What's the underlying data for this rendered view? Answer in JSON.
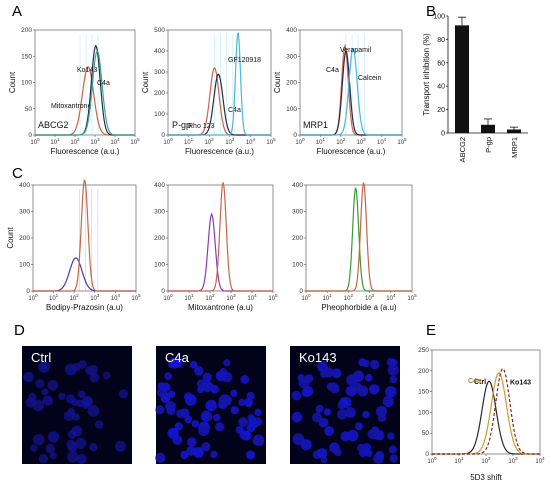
{
  "panels": {
    "A": "A",
    "B": "B",
    "C": "C",
    "D": "D",
    "E": "E"
  },
  "chart_data": [
    {
      "panel": "A",
      "type": "line",
      "inset_label": "ABCG2",
      "xlabel": "Fluorescence (a.u.)",
      "ylabel": "Count",
      "xscale": "log",
      "xlim": [
        1,
        100000
      ],
      "ylim": [
        0,
        200
      ],
      "yticks": [
        0,
        50,
        100,
        150,
        200
      ],
      "xtick_labels": [
        "10^0",
        "10^1",
        "10^2",
        "10^3",
        "10^4",
        "10^5"
      ],
      "series": [
        {
          "name": "Mitoxantrone",
          "color": "#c8644a",
          "peak_x": 450,
          "peak_y": 130,
          "width": 0.28
        },
        {
          "name": "Ko143",
          "color": "#2a2a4a",
          "peak_x": 1100,
          "peak_y": 170,
          "width": 0.22
        },
        {
          "name": "C4a",
          "color": "#3aa8a0",
          "peak_x": 1300,
          "peak_y": 160,
          "width": 0.24
        }
      ],
      "background_color": "#7fd4e8"
    },
    {
      "panel": "A",
      "type": "line",
      "inset_label": "P-gp",
      "xlabel": "Fluorescence (a.u.)",
      "ylabel": "Count",
      "xscale": "log",
      "xlim": [
        1,
        100000
      ],
      "ylim": [
        0,
        500
      ],
      "yticks": [
        0,
        100,
        200,
        300,
        400,
        500
      ],
      "xtick_labels": [
        "10^0",
        "10^1",
        "10^2",
        "10^3",
        "10^4",
        "10^5"
      ],
      "series": [
        {
          "name": "Rho 123",
          "color": "#c8644a",
          "peak_x": 180,
          "peak_y": 320,
          "width": 0.22
        },
        {
          "name": "C4a",
          "color": "#2a2a4a",
          "peak_x": 280,
          "peak_y": 290,
          "width": 0.22
        },
        {
          "name": "GF120918",
          "color": "#4ab8d8",
          "peak_x": 2500,
          "peak_y": 490,
          "width": 0.12
        }
      ],
      "background_color": "#7fd4e8"
    },
    {
      "panel": "A",
      "type": "line",
      "inset_label": "MRP1",
      "xlabel": "Fluorescence (a.u.)",
      "ylabel": "Count",
      "xscale": "log",
      "xlim": [
        1,
        100000
      ],
      "ylim": [
        0,
        400
      ],
      "yticks": [
        0,
        100,
        200,
        300,
        400
      ],
      "xtick_labels": [
        "10^0",
        "10^1",
        "10^2",
        "10^3",
        "10^4",
        "10^5"
      ],
      "series": [
        {
          "name": "C4a",
          "color": "#c8644a",
          "peak_x": 160,
          "peak_y": 340,
          "width": 0.16
        },
        {
          "name": "Calcein",
          "color": "#2a2a4a",
          "peak_x": 180,
          "peak_y": 320,
          "width": 0.18
        },
        {
          "name": "Verapamil",
          "color": "#4ab8d8",
          "peak_x": 400,
          "peak_y": 330,
          "width": 0.2
        }
      ],
      "background_color": "#7fd4e8"
    },
    {
      "panel": "B",
      "type": "bar",
      "ylabel": "Transport inhibition (%)",
      "categories": [
        "ABCG2",
        "P-gp",
        "MRP1"
      ],
      "values": [
        92,
        7,
        3
      ],
      "errors": [
        7,
        5,
        2
      ],
      "ylim": [
        0,
        100
      ],
      "yticks": [
        0,
        20,
        40,
        60,
        80,
        100
      ]
    },
    {
      "panel": "C",
      "type": "line",
      "xlabel": "Bodipy-Prazosin (a.u)",
      "ylabel": "Count",
      "xscale": "log",
      "xlim": [
        1,
        100000
      ],
      "ylim": [
        0,
        400
      ],
      "yticks": [
        0,
        100,
        200,
        300,
        400
      ],
      "xtick_labels": [
        "10^0",
        "10^1",
        "10^2",
        "10^3",
        "10^4",
        "10^5"
      ],
      "series": [
        {
          "color": "#4a3ab8",
          "peak_x": 120,
          "peak_y": 125,
          "width": 0.3
        },
        {
          "color": "#c8644a",
          "peak_x": 320,
          "peak_y": 420,
          "width": 0.16
        }
      ],
      "background_color": "#9090e8"
    },
    {
      "panel": "C",
      "type": "line",
      "xlabel": "Mitoxantrone (a.u)",
      "ylabel": "",
      "xscale": "log",
      "xlim": [
        1,
        100000
      ],
      "ylim": [
        0,
        400
      ],
      "yticks": [
        0,
        100,
        200,
        300,
        400
      ],
      "xtick_labels": [
        "10^0",
        "10^1",
        "10^2",
        "10^3",
        "10^4",
        "10^5"
      ],
      "series": [
        {
          "color": "#8a3ab8",
          "peak_x": 120,
          "peak_y": 290,
          "width": 0.17
        },
        {
          "color": "#c8644a",
          "peak_x": 420,
          "peak_y": 410,
          "width": 0.15
        }
      ]
    },
    {
      "panel": "C",
      "type": "line",
      "xlabel": "Pheophorbide a (a.u)",
      "ylabel": "",
      "xscale": "log",
      "xlim": [
        1,
        100000
      ],
      "ylim": [
        0,
        400
      ],
      "yticks": [
        0,
        100,
        200,
        300,
        400
      ],
      "xtick_labels": [
        "10^0",
        "10^1",
        "10^2",
        "10^3",
        "10^4",
        "10^5"
      ],
      "series": [
        {
          "color": "#3a9a3a",
          "peak_x": 220,
          "peak_y": 390,
          "width": 0.14
        },
        {
          "color": "#c8644a",
          "peak_x": 520,
          "peak_y": 410,
          "width": 0.14
        }
      ]
    },
    {
      "panel": "E",
      "type": "line",
      "xlabel": "5D3 shift",
      "ylabel": "",
      "xscale": "log",
      "xlim": [
        1,
        10000
      ],
      "ylim": [
        0,
        250
      ],
      "yticks": [
        0,
        50,
        100,
        150,
        200,
        250
      ],
      "xtick_labels": [
        "10^0",
        "10^1",
        "10^2",
        "10^3",
        "10^4"
      ],
      "series": [
        {
          "name": "Ctrl",
          "color": "#2a2a2a",
          "peak_x": 130,
          "peak_y": 175,
          "width": 0.26
        },
        {
          "name": "C4a",
          "color": "#c8a030",
          "peak_x": 300,
          "peak_y": 195,
          "width": 0.28
        },
        {
          "name": "Ko143",
          "color": "#8a2020",
          "peak_x": 420,
          "peak_y": 205,
          "width": 0.26
        }
      ]
    }
  ],
  "microscopy": [
    {
      "label": "Ctrl",
      "cell_count": 46,
      "brightness": 0.55
    },
    {
      "label": "C4a",
      "cell_count": 70,
      "brightness": 1.0
    },
    {
      "label": "Ko143",
      "cell_count": 66,
      "brightness": 0.95
    }
  ]
}
